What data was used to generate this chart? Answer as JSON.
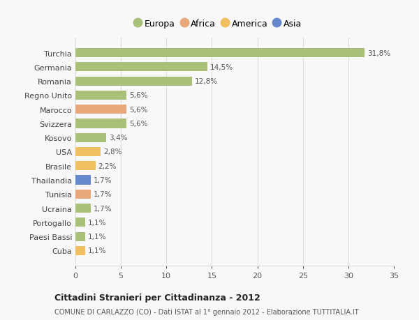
{
  "countries": [
    "Turchia",
    "Germania",
    "Romania",
    "Regno Unito",
    "Marocco",
    "Svizzera",
    "Kosovo",
    "USA",
    "Brasile",
    "Thailandia",
    "Tunisia",
    "Ucraina",
    "Portogallo",
    "Paesi Bassi",
    "Cuba"
  ],
  "values": [
    31.8,
    14.5,
    12.8,
    5.6,
    5.6,
    5.6,
    3.4,
    2.8,
    2.2,
    1.7,
    1.7,
    1.7,
    1.1,
    1.1,
    1.1
  ],
  "labels": [
    "31,8%",
    "14,5%",
    "12,8%",
    "5,6%",
    "5,6%",
    "5,6%",
    "3,4%",
    "2,8%",
    "2,2%",
    "1,7%",
    "1,7%",
    "1,7%",
    "1,1%",
    "1,1%",
    "1,1%"
  ],
  "colors": [
    "#a8c07a",
    "#a8c07a",
    "#a8c07a",
    "#a8c07a",
    "#e8a87c",
    "#a8c07a",
    "#a8c07a",
    "#f0c060",
    "#f0c060",
    "#6688cc",
    "#e8a87c",
    "#a8c07a",
    "#a8c07a",
    "#a8c07a",
    "#f0c060"
  ],
  "legend_labels": [
    "Europa",
    "Africa",
    "America",
    "Asia"
  ],
  "legend_colors": [
    "#a8c07a",
    "#e8a87c",
    "#f0c060",
    "#6688cc"
  ],
  "title": "Cittadini Stranieri per Cittadinanza - 2012",
  "subtitle": "COMUNE DI CARLAZZO (CO) - Dati ISTAT al 1° gennaio 2012 - Elaborazione TUTTITALIA.IT",
  "xlim": [
    0,
    35
  ],
  "xticks": [
    0,
    5,
    10,
    15,
    20,
    25,
    30,
    35
  ],
  "background_color": "#f8f8f8",
  "grid_color": "#dddddd",
  "bar_height": 0.65
}
